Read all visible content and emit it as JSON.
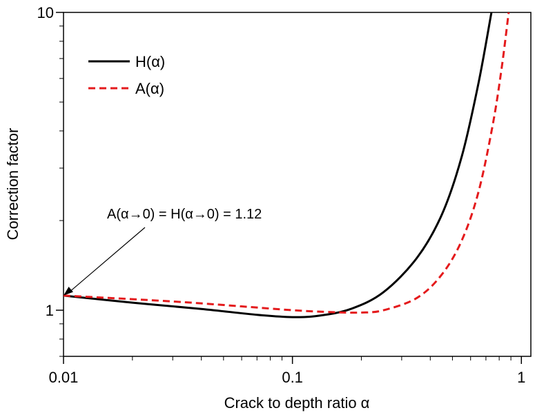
{
  "chart_data": {
    "type": "line",
    "title": "",
    "xlabel": "Crack to depth ratio α",
    "ylabel": "Correction factor",
    "xscale": "log",
    "yscale": "log",
    "xlim": [
      0.01,
      1.1
    ],
    "ylim": [
      0.7,
      10
    ],
    "x_ticks": [
      {
        "value": 0.01,
        "label": "0.01"
      },
      {
        "value": 0.1,
        "label": "0.1"
      },
      {
        "value": 1,
        "label": "1"
      }
    ],
    "y_ticks": [
      {
        "value": 1,
        "label": "1"
      },
      {
        "value": 10,
        "label": "10"
      }
    ],
    "grid": false,
    "legend": "top-left",
    "series": [
      {
        "name": "H(α)",
        "color": "#000000",
        "dash": "solid",
        "x": [
          0.01,
          0.02,
          0.04,
          0.07,
          0.1,
          0.13,
          0.18,
          0.25,
          0.35,
          0.45,
          0.55,
          0.65,
          0.74
        ],
        "y": [
          1.12,
          1.06,
          1.01,
          0.965,
          0.948,
          0.958,
          1.01,
          1.15,
          1.5,
          2.1,
          3.3,
          5.8,
          10
        ]
      },
      {
        "name": "A(α)",
        "color": "#e41a1c",
        "dash": "dashed",
        "x": [
          0.01,
          0.03,
          0.06,
          0.1,
          0.15,
          0.2,
          0.25,
          0.35,
          0.45,
          0.55,
          0.65,
          0.75,
          0.82,
          0.88
        ],
        "y": [
          1.12,
          1.07,
          1.03,
          1.0,
          0.985,
          0.982,
          1.0,
          1.1,
          1.32,
          1.72,
          2.5,
          4.2,
          6.5,
          10
        ]
      }
    ],
    "annotation": {
      "text": "A(α→0) = H(α→0) = 1.12",
      "point": {
        "x": 0.01,
        "y": 1.12
      }
    }
  }
}
